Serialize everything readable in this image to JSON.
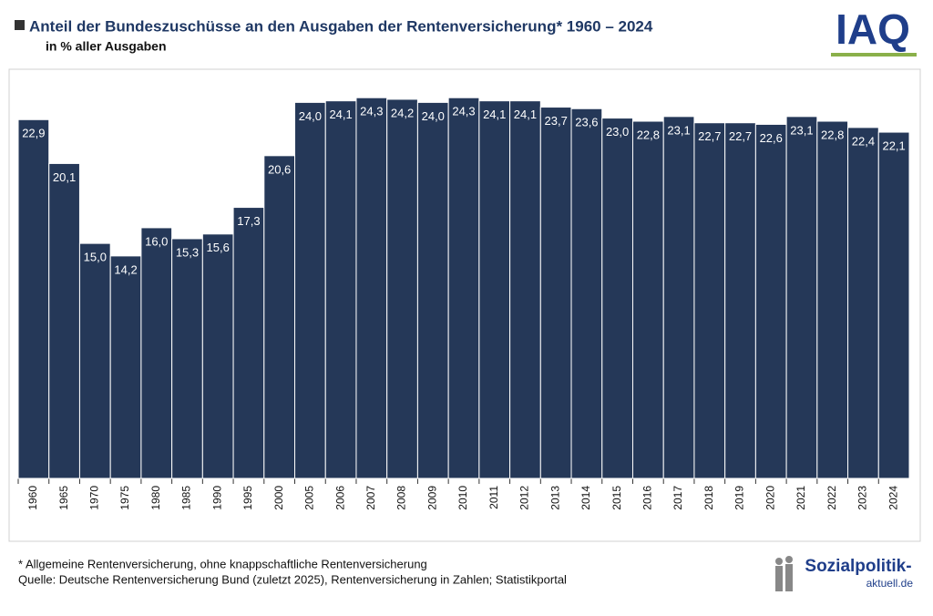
{
  "chart_data": {
    "type": "bar",
    "title": "Anteil der Bundeszuschüsse an den Ausgaben der Rentenversicherung* 1960 – 2024",
    "subtitle": "in % aller Ausgaben",
    "categories": [
      "1960",
      "1965",
      "1970",
      "1975",
      "1980",
      "1985",
      "1990",
      "1995",
      "2000",
      "2005",
      "2006",
      "2007",
      "2008",
      "2009",
      "2010",
      "2011",
      "2012",
      "2013",
      "2014",
      "2015",
      "2016",
      "2017",
      "2018",
      "2019",
      "2020",
      "2021",
      "2022",
      "2023",
      "2024"
    ],
    "values": [
      22.9,
      20.1,
      15.0,
      14.2,
      16.0,
      15.3,
      15.6,
      17.3,
      20.6,
      24.0,
      24.1,
      24.3,
      24.2,
      24.0,
      24.3,
      24.1,
      24.1,
      23.7,
      23.6,
      23.0,
      22.8,
      23.1,
      22.7,
      22.7,
      22.6,
      23.1,
      22.8,
      22.4,
      22.1
    ],
    "value_labels": [
      "22,9",
      "20,1",
      "15,0",
      "14,2",
      "16,0",
      "15,3",
      "15,6",
      "17,3",
      "20,6",
      "24,0",
      "24,1",
      "24,3",
      "24,2",
      "24,0",
      "24,3",
      "24,1",
      "24,1",
      "23,7",
      "23,6",
      "23,0",
      "22,8",
      "23,1",
      "22,7",
      "22,7",
      "22,6",
      "23,1",
      "22,8",
      "22,4",
      "22,1"
    ],
    "color": "#253858",
    "ylim": [
      0,
      26
    ],
    "footnote": "* Allgemeine Rentenversicherung, ohne knappschaftliche Rentenversicherung",
    "source": "Quelle: Deutsche Rentenversicherung Bund (zuletzt 2025), Rentenversicherung in Zahlen; Statistikportal"
  },
  "logos": {
    "iaq": "IAQ",
    "site": "Sozialpolitik-",
    "domain": "aktuell.de"
  }
}
